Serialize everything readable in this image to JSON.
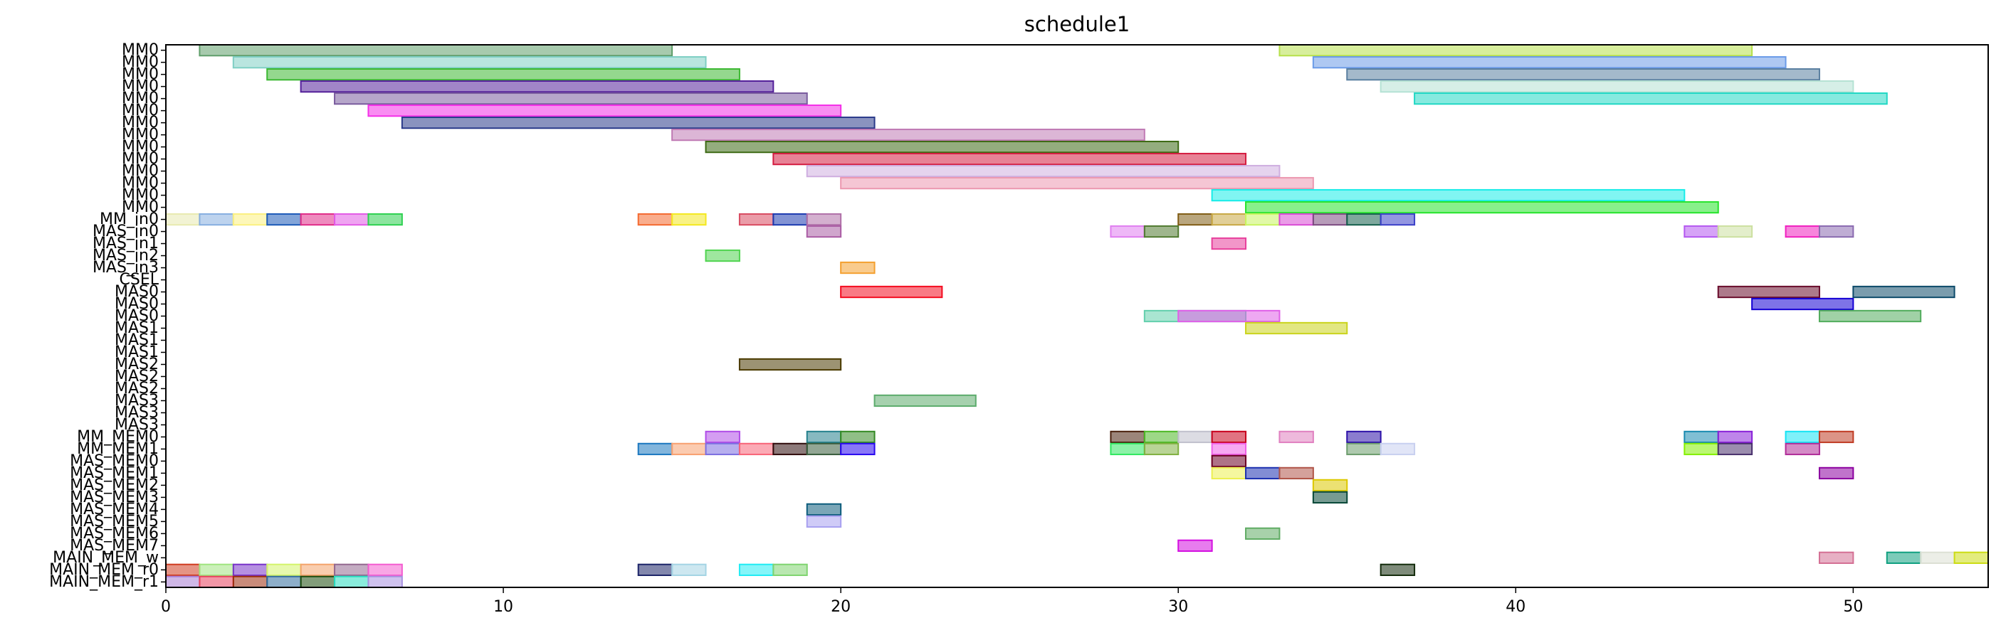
{
  "chart_data": {
    "type": "gantt",
    "title": "schedule1",
    "xlabel": "",
    "ylabel": "",
    "xlim": [
      0,
      54
    ],
    "x_ticks": [
      0,
      10,
      20,
      30,
      40,
      50
    ],
    "x_tick_labels": [
      "0",
      "10",
      "20",
      "30",
      "40",
      "50"
    ],
    "grid": false,
    "rows": [
      "MM0",
      "MM0",
      "MM0",
      "MM0",
      "MM0",
      "MM0",
      "MM0",
      "MM0",
      "MM0",
      "MM0",
      "MM0",
      "MM0",
      "MM0",
      "MM0",
      "MM_in0",
      "MAS_in0",
      "MAS_in1",
      "MAS_in2",
      "MAS_in3",
      "CSEL",
      "MAS0",
      "MAS0",
      "MAS0",
      "MAS1",
      "MAS1",
      "MAS1",
      "MAS2",
      "MAS2",
      "MAS2",
      "MAS3",
      "MAS3",
      "MAS3",
      "MM_MEM0",
      "MM_MEM1",
      "MAS_MEM0",
      "MAS_MEM1",
      "MAS_MEM2",
      "MAS_MEM3",
      "MAS_MEM4",
      "MAS_MEM5",
      "MAS_MEM6",
      "MAS_MEM7",
      "MAIN_MEM_w",
      "MAIN_MEM_r0",
      "MAIN_MEM_r1"
    ],
    "tasks": [
      {
        "row": 0,
        "start": 1,
        "end": 15,
        "color": "#5f9e6a"
      },
      {
        "row": 0,
        "start": 33,
        "end": 47,
        "color": "#b6e04a"
      },
      {
        "row": 1,
        "start": 2,
        "end": 16,
        "color": "#7fcfc4"
      },
      {
        "row": 1,
        "start": 34,
        "end": 48,
        "color": "#6b9be8"
      },
      {
        "row": 2,
        "start": 3,
        "end": 17,
        "color": "#3cb832"
      },
      {
        "row": 2,
        "start": 35,
        "end": 49,
        "color": "#5a7fa0"
      },
      {
        "row": 3,
        "start": 4,
        "end": 18,
        "color": "#54209a"
      },
      {
        "row": 3,
        "start": 36,
        "end": 50,
        "color": "#b5e2d4"
      },
      {
        "row": 4,
        "start": 5,
        "end": 19,
        "color": "#7a5c9e"
      },
      {
        "row": 4,
        "start": 37,
        "end": 51,
        "color": "#22d8c4"
      },
      {
        "row": 5,
        "start": 6,
        "end": 20,
        "color": "#f430e8"
      },
      {
        "row": 6,
        "start": 7,
        "end": 21,
        "color": "#2a3a8a"
      },
      {
        "row": 7,
        "start": 15,
        "end": 29,
        "color": "#c07ab4"
      },
      {
        "row": 8,
        "start": 16,
        "end": 30,
        "color": "#3d6a14"
      },
      {
        "row": 9,
        "start": 18,
        "end": 32,
        "color": "#d41c40"
      },
      {
        "row": 10,
        "start": 19,
        "end": 33,
        "color": "#cfaee0"
      },
      {
        "row": 11,
        "start": 20,
        "end": 34,
        "color": "#ec98b0"
      },
      {
        "row": 12,
        "start": 31,
        "end": 45,
        "color": "#18ece8"
      },
      {
        "row": 13,
        "start": 32,
        "end": 46,
        "color": "#26e42c"
      },
      {
        "row": 14,
        "start": 0,
        "end": 1,
        "color": "#e8eab0"
      },
      {
        "row": 14,
        "start": 1,
        "end": 2,
        "color": "#86aee0"
      },
      {
        "row": 14,
        "start": 2,
        "end": 3,
        "color": "#fbf080"
      },
      {
        "row": 14,
        "start": 3,
        "end": 4,
        "color": "#1c5ab8"
      },
      {
        "row": 14,
        "start": 4,
        "end": 5,
        "color": "#e02c88"
      },
      {
        "row": 14,
        "start": 5,
        "end": 6,
        "color": "#e25ae6"
      },
      {
        "row": 14,
        "start": 6,
        "end": 7,
        "color": "#2ed050"
      },
      {
        "row": 14,
        "start": 14,
        "end": 15,
        "color": "#f46a30"
      },
      {
        "row": 14,
        "start": 15,
        "end": 16,
        "color": "#f4e820"
      },
      {
        "row": 14,
        "start": 17,
        "end": 18,
        "color": "#d84a60"
      },
      {
        "row": 14,
        "start": 18,
        "end": 19,
        "color": "#1c3ab0"
      },
      {
        "row": 14,
        "start": 19,
        "end": 20,
        "color": "#b070a8"
      },
      {
        "row": 14,
        "start": 30,
        "end": 31,
        "color": "#805c14"
      },
      {
        "row": 14,
        "start": 31,
        "end": 32,
        "color": "#c8a844"
      },
      {
        "row": 14,
        "start": 32,
        "end": 33,
        "color": "#c8f460"
      },
      {
        "row": 14,
        "start": 33,
        "end": 34,
        "color": "#d84ad4"
      },
      {
        "row": 14,
        "start": 34,
        "end": 35,
        "color": "#7c4a80"
      },
      {
        "row": 14,
        "start": 35,
        "end": 36,
        "color": "#14604c"
      },
      {
        "row": 14,
        "start": 36,
        "end": 37,
        "color": "#3a40c8"
      },
      {
        "row": 15,
        "start": 19,
        "end": 20,
        "color": "#aa5ca4"
      },
      {
        "row": 15,
        "start": 28,
        "end": 29,
        "color": "#e07ef0"
      },
      {
        "row": 15,
        "start": 29,
        "end": 30,
        "color": "#507a30"
      },
      {
        "row": 15,
        "start": 45,
        "end": 46,
        "color": "#b458f0"
      },
      {
        "row": 15,
        "start": 46,
        "end": 47,
        "color": "#cce0a0"
      },
      {
        "row": 15,
        "start": 48,
        "end": 49,
        "color": "#f020c0"
      },
      {
        "row": 15,
        "start": 49,
        "end": 50,
        "color": "#8a6ab0"
      },
      {
        "row": 16,
        "start": 31,
        "end": 32,
        "color": "#e8409c"
      },
      {
        "row": 17,
        "start": 16,
        "end": 17,
        "color": "#50d450"
      },
      {
        "row": 18,
        "start": 20,
        "end": 21,
        "color": "#f4a030"
      },
      {
        "row": 20,
        "start": 20,
        "end": 23,
        "color": "#f40c20"
      },
      {
        "row": 20,
        "start": 46,
        "end": 49,
        "color": "#6a0c2c"
      },
      {
        "row": 20,
        "start": 50,
        "end": 53,
        "color": "#0c4a6a"
      },
      {
        "row": 21,
        "start": 47,
        "end": 50,
        "color": "#1400d4"
      },
      {
        "row": 22,
        "start": 29,
        "end": 32,
        "color": "#62cfac"
      },
      {
        "row": 22,
        "start": 30,
        "end": 33,
        "color": "#e060e8"
      },
      {
        "row": 22,
        "start": 49,
        "end": 52,
        "color": "#52ac5c"
      },
      {
        "row": 23,
        "start": 32,
        "end": 35,
        "color": "#cad41c"
      },
      {
        "row": 26,
        "start": 17,
        "end": 20,
        "color": "#4a3a00"
      },
      {
        "row": 29,
        "start": 21,
        "end": 24,
        "color": "#5cac6c"
      },
      {
        "row": 32,
        "start": 16,
        "end": 17,
        "color": "#b04ce8"
      },
      {
        "row": 32,
        "start": 19,
        "end": 20,
        "color": "#24808c"
      },
      {
        "row": 32,
        "start": 20,
        "end": 21,
        "color": "#348a24"
      },
      {
        "row": 32,
        "start": 28,
        "end": 29,
        "color": "#4a200c"
      },
      {
        "row": 32,
        "start": 29,
        "end": 30,
        "color": "#4cb824"
      },
      {
        "row": 32,
        "start": 30,
        "end": 31,
        "color": "#c0c0cc"
      },
      {
        "row": 32,
        "start": 31,
        "end": 32,
        "color": "#c8001c"
      },
      {
        "row": 32,
        "start": 33,
        "end": 34,
        "color": "#e080c0"
      },
      {
        "row": 32,
        "start": 35,
        "end": 36,
        "color": "#2c10a8"
      },
      {
        "row": 32,
        "start": 45,
        "end": 46,
        "color": "#188ab0"
      },
      {
        "row": 32,
        "start": 46,
        "end": 47,
        "color": "#8820d8"
      },
      {
        "row": 32,
        "start": 48,
        "end": 49,
        "color": "#14e4f4"
      },
      {
        "row": 32,
        "start": 49,
        "end": 50,
        "color": "#c03c24"
      },
      {
        "row": 33,
        "start": 14,
        "end": 15,
        "color": "#1c78c0"
      },
      {
        "row": 33,
        "start": 15,
        "end": 16,
        "color": "#f8a070"
      },
      {
        "row": 33,
        "start": 16,
        "end": 17,
        "color": "#7c6ee0"
      },
      {
        "row": 33,
        "start": 17,
        "end": 18,
        "color": "#f86478"
      },
      {
        "row": 33,
        "start": 18,
        "end": 19,
        "color": "#300c0c"
      },
      {
        "row": 33,
        "start": 19,
        "end": 20,
        "color": "#385c3c"
      },
      {
        "row": 33,
        "start": 20,
        "end": 21,
        "color": "#2808f0"
      },
      {
        "row": 33,
        "start": 28,
        "end": 29,
        "color": "#30e860"
      },
      {
        "row": 33,
        "start": 29,
        "end": 30,
        "color": "#80b040"
      },
      {
        "row": 33,
        "start": 31,
        "end": 32,
        "color": "#f060e8"
      },
      {
        "row": 33,
        "start": 35,
        "end": 36,
        "color": "#6c9c6c"
      },
      {
        "row": 33,
        "start": 36,
        "end": 37,
        "color": "#c8d0f0"
      },
      {
        "row": 33,
        "start": 45,
        "end": 46,
        "color": "#84f000"
      },
      {
        "row": 33,
        "start": 46,
        "end": 47,
        "color": "#48306c"
      },
      {
        "row": 33,
        "start": 48,
        "end": 49,
        "color": "#b02c98"
      },
      {
        "row": 34,
        "start": 31,
        "end": 32,
        "color": "#6c0024"
      },
      {
        "row": 35,
        "start": 31,
        "end": 32,
        "color": "#ecf050"
      },
      {
        "row": 35,
        "start": 32,
        "end": 33,
        "color": "#1c30b0"
      },
      {
        "row": 35,
        "start": 33,
        "end": 34,
        "color": "#b05448"
      },
      {
        "row": 35,
        "start": 49,
        "end": 50,
        "color": "#8c00a0"
      },
      {
        "row": 36,
        "start": 34,
        "end": 35,
        "color": "#dcc800"
      },
      {
        "row": 37,
        "start": 34,
        "end": 35,
        "color": "#084838"
      },
      {
        "row": 38,
        "start": 19,
        "end": 20,
        "color": "#0c5c7c"
      },
      {
        "row": 39,
        "start": 19,
        "end": 20,
        "color": "#a8a0f0"
      },
      {
        "row": 40,
        "start": 32,
        "end": 33,
        "color": "#60ac64"
      },
      {
        "row": 41,
        "start": 30,
        "end": 31,
        "color": "#d410e0"
      },
      {
        "row": 42,
        "start": 49,
        "end": 50,
        "color": "#d47094"
      },
      {
        "row": 42,
        "start": 51,
        "end": 52,
        "color": "#10a080"
      },
      {
        "row": 42,
        "start": 52,
        "end": 53,
        "color": "#dce0d4"
      },
      {
        "row": 42,
        "start": 53,
        "end": 54,
        "color": "#ccdc14"
      },
      {
        "row": 43,
        "start": 0,
        "end": 1,
        "color": "#d03c20"
      },
      {
        "row": 43,
        "start": 1,
        "end": 2,
        "color": "#a0e480"
      },
      {
        "row": 43,
        "start": 2,
        "end": 3,
        "color": "#7834c8"
      },
      {
        "row": 43,
        "start": 3,
        "end": 4,
        "color": "#d4f46c"
      },
      {
        "row": 43,
        "start": 4,
        "end": 5,
        "color": "#f4a46c"
      },
      {
        "row": 43,
        "start": 5,
        "end": 6,
        "color": "#946890"
      },
      {
        "row": 43,
        "start": 6,
        "end": 7,
        "color": "#f45cd0"
      },
      {
        "row": 43,
        "start": 14,
        "end": 15,
        "color": "#1c2468"
      },
      {
        "row": 43,
        "start": 15,
        "end": 16,
        "color": "#a4d4e4"
      },
      {
        "row": 43,
        "start": 17,
        "end": 18,
        "color": "#20ecf4"
      },
      {
        "row": 43,
        "start": 18,
        "end": 19,
        "color": "#80d470"
      },
      {
        "row": 43,
        "start": 36,
        "end": 37,
        "color": "#142c0c"
      },
      {
        "row": 44,
        "start": 0,
        "end": 1,
        "color": "#a87cd4"
      },
      {
        "row": 44,
        "start": 1,
        "end": 2,
        "color": "#e8405c"
      },
      {
        "row": 44,
        "start": 2,
        "end": 3,
        "color": "#9c2c0c"
      },
      {
        "row": 44,
        "start": 3,
        "end": 4,
        "color": "#306c9c"
      },
      {
        "row": 44,
        "start": 4,
        "end": 5,
        "color": "#1c4c0c"
      },
      {
        "row": 44,
        "start": 5,
        "end": 6,
        "color": "#28dcc0"
      },
      {
        "row": 44,
        "start": 6,
        "end": 7,
        "color": "#a890e0"
      }
    ]
  }
}
